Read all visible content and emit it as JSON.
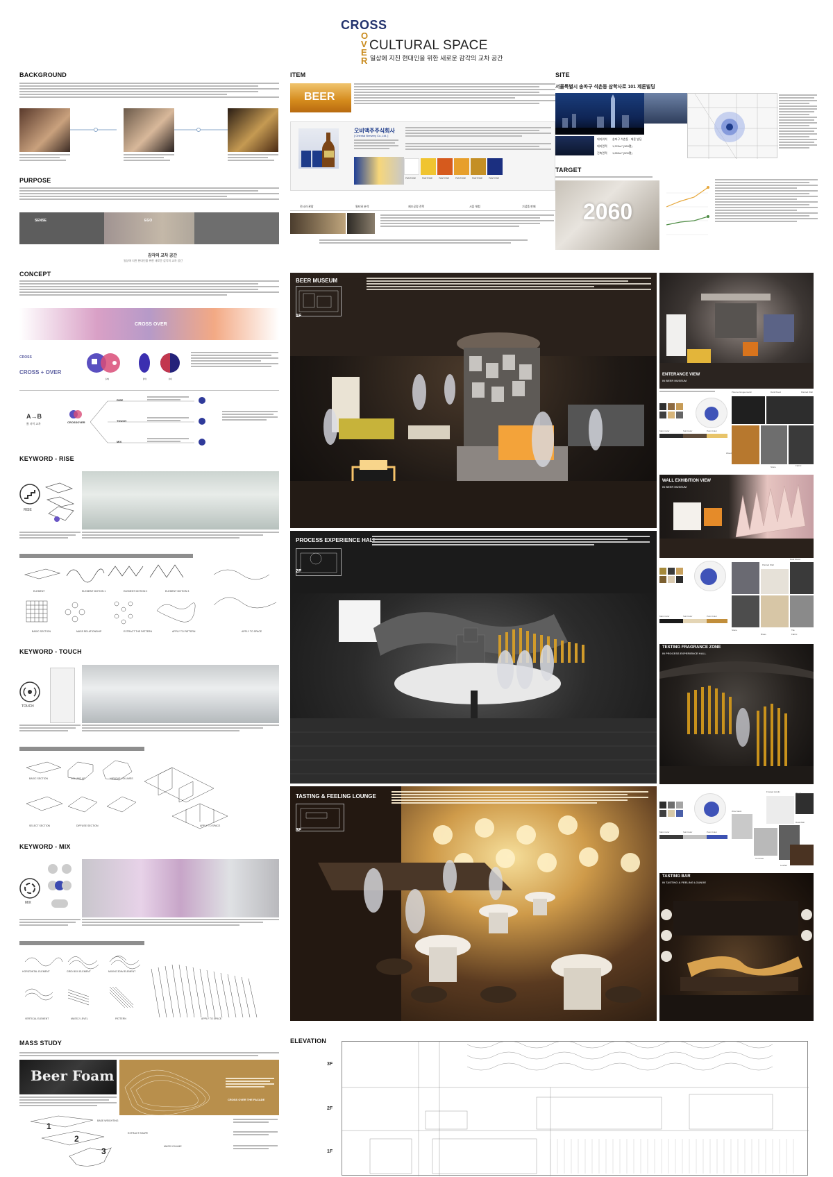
{
  "header": {
    "cross": "CROSS",
    "over_letters": [
      "O",
      "V",
      "E",
      "R"
    ],
    "title": "CULTURAL SPACE",
    "subtitle": "일상에 지친 현대인을 위한 새로운 감각의 교차 공간"
  },
  "sections": {
    "background": "BACKGROUND",
    "purpose": "PURPOSE",
    "concept": "CONCEPT",
    "keyword_rise": "KEYWORD - RISE",
    "keyword_touch": "KEYWORD - TOUCH",
    "keyword_mix": "KEYWORD - MIX",
    "mass_study": "MASS STUDY",
    "item": "ITEM",
    "site": "SITE",
    "target": "TARGET",
    "elevation": "ELEVATION"
  },
  "purpose": {
    "bar_labels": [
      "SENSE",
      "EGO"
    ],
    "caption": "감각의 교차 공간",
    "caption_sub": "일상에 지친 현대인을 위한 새로운 감각의 교차 공간"
  },
  "concept": {
    "gradient_label": "CROSS OVER",
    "cross_over_word": "CROSS + OVER",
    "cross_word": "CROSS",
    "ab": "A→B",
    "ab_sub": "둘 사이 교차",
    "crossover_small": "CROSSOVER",
    "venn_labels": [
      "(a)",
      "(b)",
      "(c)"
    ],
    "flow_labels": [
      "SENSE",
      "SYNTHESIS",
      "MEANING"
    ],
    "flow_items": [
      "RISE",
      "TOUCH",
      "MIX"
    ]
  },
  "keywords": {
    "rise_badge": "RISE",
    "touch_badge": "TOUCH",
    "mix_badge": "MIX",
    "rise_captions": [
      "ELEMENT",
      "ELEMENT MOTION 1",
      "ELEMENT MOTION 2",
      "ELEMENT MOTION 3",
      "BASIC SECTION",
      "MASS RELATIONSHIP",
      "EXTRACT THE PATTERN",
      "APPLY TO PATTERN",
      "APPLY TO SPACE"
    ],
    "touch_captions": [
      "BASIC SECTION",
      "VOLUME UP",
      "VARIOUS VOLUMES",
      "SELECT SECTION",
      "DIFFUSE SECTION",
      "APPLY TO SPACE"
    ],
    "mix_captions": [
      "HORIZONTAL ELEMENT",
      "GRID BOX ELEMENT",
      "MIXING 3DIM ELEMENT",
      "VERTICAL ELEMENT",
      "MASS 2 LEVEL",
      "PATTERN",
      "APPLY TO SPACE"
    ]
  },
  "mass_study": {
    "beer_foam": "Beer Foam",
    "facade_label": "CROSS OVER THE FACADE",
    "steps": [
      "1",
      "2",
      "3"
    ],
    "step_labels": [
      "BASE WEIGHTING",
      "EXTRACT SHAPE",
      "MASS VOLUME"
    ]
  },
  "item": {
    "beer_label": "BEER",
    "company": "오비맥주주식회사",
    "company_en": "[ Oriental Brewery Co.,Ltd. ]",
    "pantone_labels": [
      "PANTONE",
      "PANTONE",
      "PANTONE",
      "PANTONE",
      "PANTONE",
      "PANTONE"
    ],
    "strip_labels": [
      "전시와 관람",
      "필터와 분석",
      "제조공정 견학",
      "시음 체험",
      "기념품 판매"
    ]
  },
  "site": {
    "address": "서울특별시 송파구 석촌동 삼학사로 101 제론빌딩",
    "table_rows": [
      "대지위치",
      "대지면적",
      "건축면적"
    ],
    "table_values": [
      "송파구 석촌동 · 제론 빌딩",
      "1,220m² (369평)",
      "1,650m² (500평)"
    ]
  },
  "target": {
    "year": "2060"
  },
  "renders": {
    "beer_museum": {
      "title": "BEER MUSEUM",
      "floor": "1F"
    },
    "process_hall": {
      "title": "PROCESS EXPERIENCE HALL",
      "floor": "2F"
    },
    "tasting_lounge": {
      "title": "TASTING & FEELING LOUNGE",
      "floor": "3F"
    },
    "entrance_view": {
      "title": "ENTERANCE VIEW",
      "sub": "IN BEER MUSEUM"
    },
    "wall_exhibition": {
      "title": "WALL EXHIBITION VIEW",
      "sub": "IN BEER MUSEUM"
    },
    "fragrance_zone": {
      "title": "TESTING FRAGRANCE ZONE",
      "sub": "IN PROCESS EXPERIENCE HALL"
    },
    "tasting_bar": {
      "title": "TASTING BAR",
      "sub": "IN TASTING & FEELING LOUNGE"
    }
  },
  "materials": {
    "labels_1": [
      "Dark Wood",
      "Painted Wall",
      "Plasma Grogeometric",
      "Main Color",
      "Sub Color",
      "Point Color",
      "Wood",
      "Stone",
      "Fabric"
    ],
    "labels_2": [
      "Dark Wood",
      "Painted Wall",
      "Stone",
      "Tile",
      "Main Color",
      "Sub Color",
      "Point Color",
      "Brass",
      "Fabric"
    ],
    "labels_3": [
      "Frosted Acrylic",
      "Wood",
      "Wire Mesh",
      "Concrete",
      "Leather",
      "Real Wall",
      "Main Color",
      "Sub Color",
      "Point Color"
    ]
  },
  "elevation": {
    "floors": [
      "3F",
      "2F",
      "1F"
    ]
  }
}
